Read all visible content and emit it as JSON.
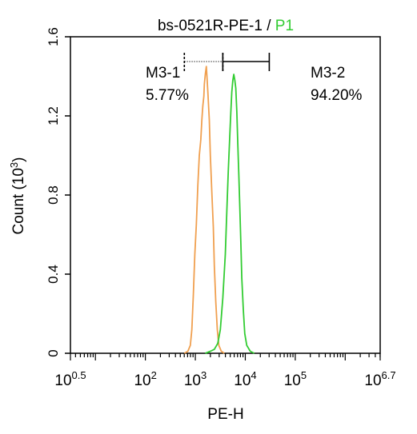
{
  "chart_data": {
    "type": "histogram",
    "title": {
      "sample": "bs-0521R-PE-1",
      "separator": " / ",
      "gate": "P1",
      "gate_color": "#33cc33"
    },
    "xlabel": "PE-H",
    "ylabel": {
      "text": "Count  (10",
      "sup": "3",
      "close": ")"
    },
    "x_scale": "log",
    "xlim_log10": [
      0.5,
      6.7
    ],
    "ylim": [
      0,
      1.6
    ],
    "y_ticks": [
      {
        "value": 0,
        "label": "0"
      },
      {
        "value": 0.4,
        "label": "0.4"
      },
      {
        "value": 0.8,
        "label": "0.8"
      },
      {
        "value": 1.2,
        "label": "1.2"
      },
      {
        "value": 1.6,
        "label": "1.6"
      }
    ],
    "x_ticks": [
      {
        "exp": 0.5,
        "base": "10",
        "sup": "0.5"
      },
      {
        "exp": 2,
        "base": "10",
        "sup": "2"
      },
      {
        "exp": 3,
        "base": "10",
        "sup": "3"
      },
      {
        "exp": 4,
        "base": "10",
        "sup": "4"
      },
      {
        "exp": 5,
        "base": "10",
        "sup": "5"
      },
      {
        "exp": 6.7,
        "base": "10",
        "sup": "6.7"
      }
    ],
    "series": [
      {
        "color": "#f0a050",
        "points": [
          [
            2.78,
            0
          ],
          [
            2.85,
            0.01
          ],
          [
            2.9,
            0.04
          ],
          [
            2.93,
            0.12
          ],
          [
            2.96,
            0.3
          ],
          [
            2.99,
            0.5
          ],
          [
            3.02,
            0.65
          ],
          [
            3.05,
            0.85
          ],
          [
            3.08,
            1.0
          ],
          [
            3.11,
            1.08
          ],
          [
            3.13,
            1.18
          ],
          [
            3.15,
            1.25
          ],
          [
            3.17,
            1.3
          ],
          [
            3.18,
            1.36
          ],
          [
            3.2,
            1.41
          ],
          [
            3.22,
            1.45
          ],
          [
            3.23,
            1.41
          ],
          [
            3.25,
            1.32
          ],
          [
            3.28,
            1.18
          ],
          [
            3.3,
            1.0
          ],
          [
            3.33,
            0.82
          ],
          [
            3.36,
            0.64
          ],
          [
            3.38,
            0.44
          ],
          [
            3.41,
            0.26
          ],
          [
            3.44,
            0.12
          ],
          [
            3.47,
            0.04
          ],
          [
            3.52,
            0.01
          ],
          [
            3.58,
            0
          ]
        ]
      },
      {
        "color": "#33cc33",
        "points": [
          [
            3.2,
            0
          ],
          [
            3.3,
            0.01
          ],
          [
            3.38,
            0.02
          ],
          [
            3.45,
            0.05
          ],
          [
            3.5,
            0.12
          ],
          [
            3.55,
            0.28
          ],
          [
            3.6,
            0.5
          ],
          [
            3.63,
            0.72
          ],
          [
            3.66,
            0.92
          ],
          [
            3.69,
            1.1
          ],
          [
            3.71,
            1.22
          ],
          [
            3.73,
            1.32
          ],
          [
            3.75,
            1.38
          ],
          [
            3.77,
            1.41
          ],
          [
            3.79,
            1.38
          ],
          [
            3.81,
            1.34
          ],
          [
            3.83,
            1.22
          ],
          [
            3.85,
            1.06
          ],
          [
            3.87,
            0.9
          ],
          [
            3.89,
            0.74
          ],
          [
            3.91,
            0.56
          ],
          [
            3.93,
            0.38
          ],
          [
            3.96,
            0.22
          ],
          [
            3.99,
            0.1
          ],
          [
            4.03,
            0.04
          ],
          [
            4.1,
            0.01
          ],
          [
            4.18,
            0
          ]
        ]
      }
    ],
    "markers": [
      {
        "label": "M3-1",
        "value": "5.77%",
        "range_log10": [
          2.78,
          3.55
        ],
        "line_style": "dotted"
      },
      {
        "label": "M3-2",
        "value": "94.20%",
        "range_log10": [
          3.55,
          4.48
        ],
        "line_style": "solid"
      }
    ],
    "grid": false,
    "legend": "none"
  }
}
